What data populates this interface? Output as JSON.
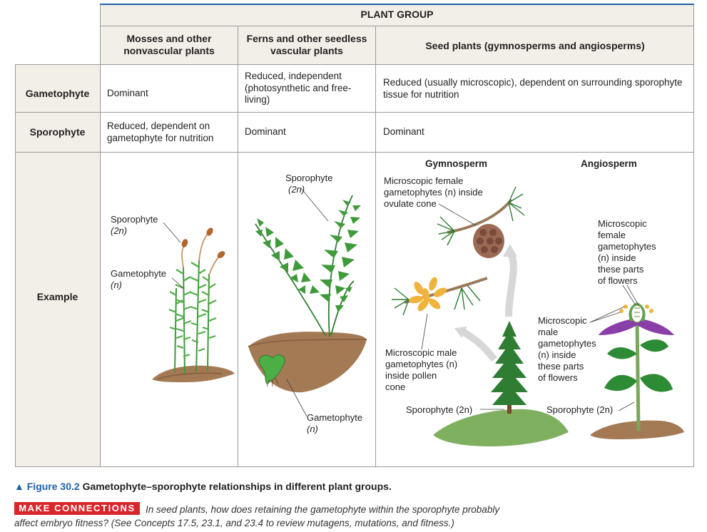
{
  "table": {
    "group_header": "PLANT GROUP",
    "columns": [
      "Mosses and other nonvascular plants",
      "Ferns and other seedless vascular plants",
      "Seed plants (gymnosperms and angiosperms)"
    ],
    "rows": [
      {
        "label": "Gametophyte",
        "cells": [
          "Dominant",
          "Reduced, independent (photosynthetic and free-living)",
          "Reduced (usually microscopic), dependent on surrounding sporophyte tissue for nutrition"
        ]
      },
      {
        "label": "Sporophyte",
        "cells": [
          "Reduced, dependent on gametophyte for nutrition",
          "Dominant",
          "Dominant"
        ]
      },
      {
        "label": "Example"
      }
    ]
  },
  "example": {
    "moss": {
      "sporophyte_label": "Sporophyte",
      "sporophyte_ploidy": "(2n)",
      "gametophyte_label": "Gametophyte",
      "gametophyte_ploidy": "(n)"
    },
    "fern": {
      "sporophyte_label": "Sporophyte",
      "sporophyte_ploidy": "(2n)",
      "gametophyte_label": "Gametophyte",
      "gametophyte_ploidy": "(n)"
    },
    "gymnosperm": {
      "title": "Gymnosperm",
      "female_label_1": "Microscopic female",
      "female_label_2": "gametophytes (n) inside",
      "female_label_3": "ovulate cone",
      "male_label_1": "Microscopic male",
      "male_label_2": "gametophytes (n)",
      "male_label_3": "inside pollen",
      "male_label_4": "cone",
      "sporophyte_label": "Sporophyte (2n)"
    },
    "angiosperm": {
      "title": "Angiosperm",
      "female_label_1": "Microscopic",
      "female_label_2": "female",
      "female_label_3": "gametophytes",
      "female_label_4": "(n) inside",
      "female_label_5": "these parts",
      "female_label_6": "of flowers",
      "male_label_1": "Microscopic",
      "male_label_2": "male",
      "male_label_3": "gametophytes",
      "male_label_4": "(n) inside",
      "male_label_5": "these parts",
      "male_label_6": "of flowers",
      "sporophyte_label": "Sporophyte (2n)"
    }
  },
  "caption": {
    "marker": "▲",
    "figure_number": "Figure 30.2",
    "title": "Gametophyte–sporophyte relationships in different plant groups."
  },
  "make_connections": {
    "badge": "MAKE CONNECTIONS",
    "text_line1": "In seed plants, how does retaining the gametophyte within the sporophyte probably",
    "text_line2": "affect embryo fitness? (See Concepts 17.5, 23.1, and 23.4 to review mutagens, mutations, and fitness.)"
  },
  "colors": {
    "header_bg": "#f2efe9",
    "row_label_bg": "#f2efe9",
    "header_top_rule": "#1f5fa8",
    "plant_green": "#3f9a3a",
    "soil_brown": "#a47a55",
    "badge_red": "#d9262b",
    "caption_blue": "#1f5fa8"
  }
}
